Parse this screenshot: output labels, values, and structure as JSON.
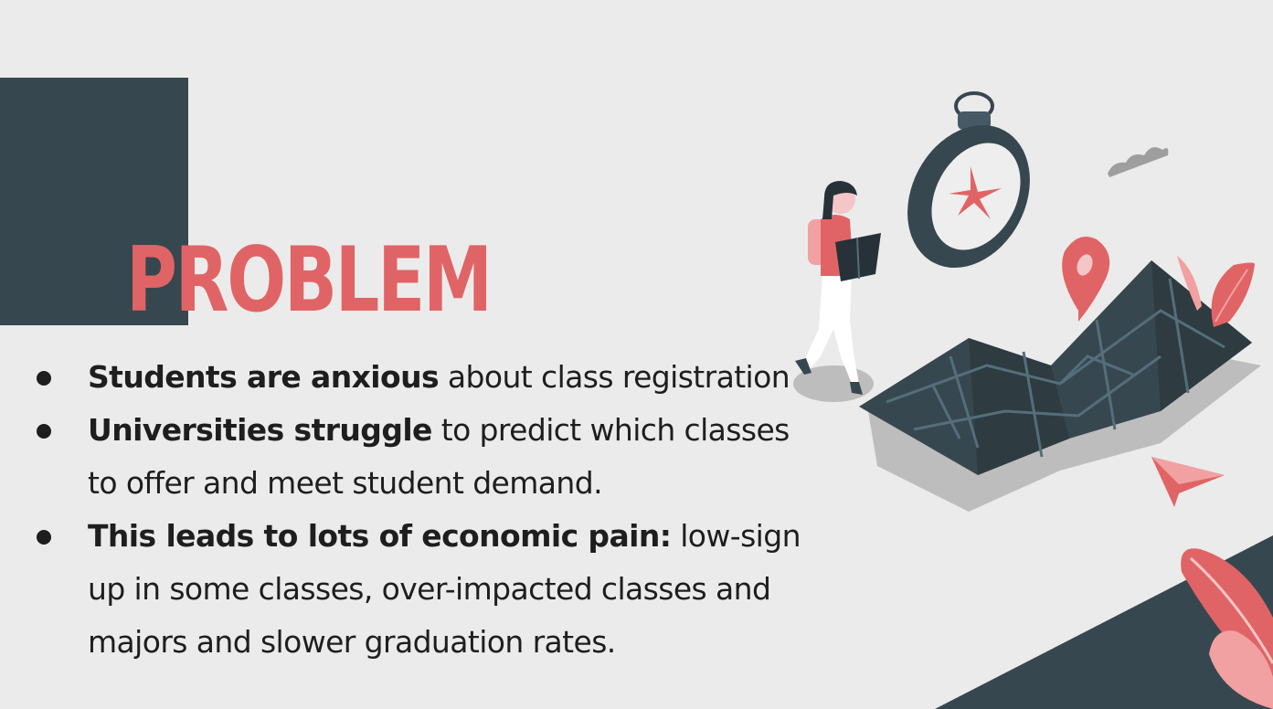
{
  "slide": {
    "title": "PROBLEM",
    "bullets": [
      {
        "bold": "Students are anxious",
        "text": " about class registration"
      },
      {
        "bold": "Universities struggle",
        "text": " to predict which classes to offer and meet student demand."
      },
      {
        "bold": "This leads to lots of economic pain:",
        "text": "  low-sign up in some classes, over-impacted classes and majors and slower graduation rates."
      }
    ]
  },
  "colors": {
    "background": "#ebebeb",
    "dark": "#37474f",
    "accent": "#e06466",
    "text": "#1e1e1e"
  },
  "icons": {
    "illustration": "person-reading-map-illustration",
    "compass": "compass-icon",
    "map": "folded-map-icon",
    "pin": "location-pin-icon",
    "cloud": "cloud-icon",
    "arrow": "paper-plane-arrow-icon",
    "leaf": "leaf-icon"
  }
}
